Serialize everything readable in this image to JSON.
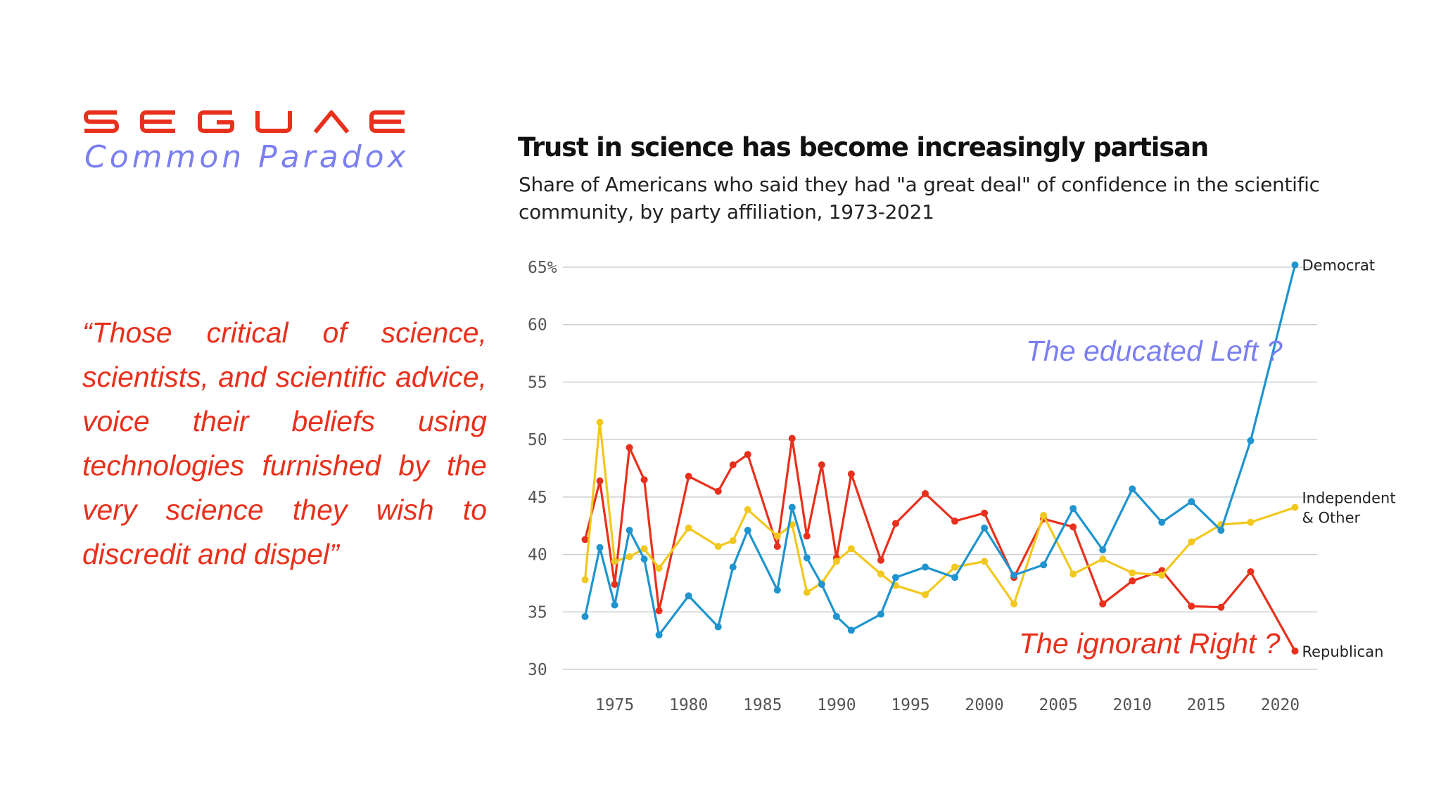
{
  "brand": {
    "name": "SEGUAE",
    "tagline": "Common Paradox",
    "color": "#e8301c",
    "tagline_color": "#7b7ff0"
  },
  "quote": "“Those critical of science, scientists, and scientific advice, voice their beliefs using technologies furnished by the very science they wish to discredit and dispel”",
  "annotations": {
    "left": "The educated Left ?",
    "right": "The ignorant Right ?"
  },
  "chart_data": {
    "type": "line",
    "title": "Trust in science has become increasingly partisan",
    "subtitle": "Share of Americans who said they had \"a great deal\" of confidence in the scientific community, by party affiliation, 1973-2021",
    "ylim": [
      30,
      65
    ],
    "y_ticks": [
      "65%",
      "60",
      "55",
      "50",
      "45",
      "40",
      "35",
      "30"
    ],
    "y_tick_values": [
      65,
      60,
      55,
      50,
      45,
      40,
      35,
      30
    ],
    "x_ticks": [
      1975,
      1980,
      1985,
      1990,
      1995,
      2000,
      2005,
      2010,
      2015,
      2020
    ],
    "xlim": [
      1971.5,
      2022.5
    ],
    "grid": true,
    "series": [
      {
        "name": "Democrat",
        "color": "#1f94cf",
        "x": [
          1973,
          1974,
          1975,
          1976,
          1977,
          1978,
          1980,
          1982,
          1983,
          1984,
          1986,
          1987,
          1988,
          1989,
          1990,
          1991,
          1993,
          1994,
          1996,
          1998,
          2000,
          2002,
          2004,
          2006,
          2008,
          2010,
          2012,
          2014,
          2016,
          2018,
          2021
        ],
        "y": [
          34.6,
          40.6,
          35.6,
          42.1,
          39.6,
          33.0,
          36.4,
          33.7,
          38.9,
          42.1,
          36.9,
          44.1,
          39.7,
          37.4,
          34.6,
          33.4,
          34.8,
          38.0,
          38.9,
          38.0,
          42.3,
          38.2,
          39.1,
          44.0,
          40.4,
          45.7,
          42.8,
          44.6,
          42.1,
          49.9,
          65.2
        ]
      },
      {
        "name": "Independent & Other",
        "color": "#f2c81f",
        "x": [
          1973,
          1974,
          1975,
          1976,
          1977,
          1978,
          1980,
          1982,
          1983,
          1984,
          1986,
          1987,
          1988,
          1989,
          1990,
          1991,
          1993,
          1994,
          1996,
          1998,
          2000,
          2002,
          2004,
          2006,
          2008,
          2010,
          2012,
          2014,
          2016,
          2018,
          2021
        ],
        "y": [
          37.8,
          51.5,
          39.4,
          39.8,
          40.5,
          38.8,
          42.3,
          40.7,
          41.2,
          43.9,
          41.6,
          42.6,
          36.7,
          37.5,
          39.4,
          40.5,
          38.3,
          37.3,
          36.5,
          38.9,
          39.4,
          35.7,
          43.4,
          38.3,
          39.6,
          38.4,
          38.2,
          41.1,
          42.6,
          42.8,
          44.1
        ]
      },
      {
        "name": "Republican",
        "color": "#e8301c",
        "x": [
          1973,
          1974,
          1975,
          1976,
          1977,
          1978,
          1980,
          1982,
          1983,
          1984,
          1986,
          1987,
          1988,
          1989,
          1990,
          1991,
          1993,
          1994,
          1996,
          1998,
          2000,
          2002,
          2004,
          2006,
          2008,
          2010,
          2012,
          2014,
          2016,
          2018,
          2021
        ],
        "y": [
          41.3,
          46.4,
          37.4,
          49.3,
          46.5,
          35.1,
          46.8,
          45.5,
          47.8,
          48.7,
          40.7,
          50.1,
          41.6,
          47.8,
          39.7,
          47.0,
          39.5,
          42.7,
          45.3,
          42.9,
          43.6,
          38.0,
          43.1,
          42.4,
          35.7,
          37.7,
          38.6,
          35.5,
          35.4,
          38.5,
          31.6
        ]
      }
    ],
    "series_labels": [
      {
        "lines": [
          "Democrat"
        ]
      },
      {
        "lines": [
          "Independent",
          "& Other"
        ]
      },
      {
        "lines": [
          "Republican"
        ]
      }
    ]
  }
}
